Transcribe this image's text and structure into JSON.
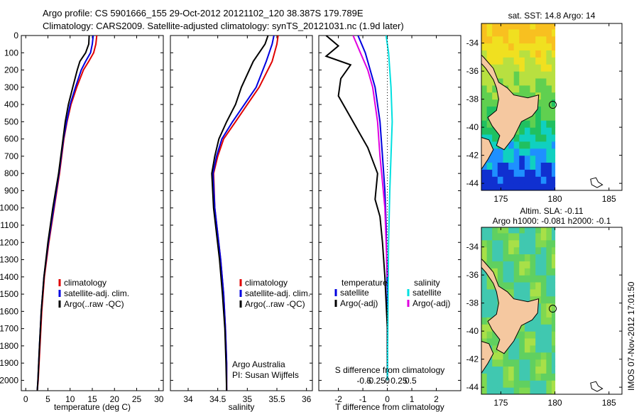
{
  "title_line1": "Argo profile: CS 5901666_155 29-Oct-2012 20121102_120 38.387S 179.789E",
  "title_line2": "Climatology: CARS2009. Satellite-adjusted climatology: synTS_20121031.nc (1.9d later)",
  "side_stamp": "IMOS 07-Nov-2012 17:01:50",
  "credit": [
    "Argo Australia",
    "PI: Susan Wijffels"
  ],
  "colors": {
    "climatology": "#e00000",
    "satellite": "#0000e0",
    "argo": "#000000",
    "sal_satellite": "#00e0e0",
    "sal_argo": "#e000e0",
    "land": "#f5c8a0"
  },
  "chart_data": [
    {
      "type": "line",
      "xlabel": "temperature (deg C)",
      "xlim": [
        -1,
        31
      ],
      "xticks": [
        0,
        5,
        10,
        15,
        20,
        25,
        30
      ],
      "ylim": [
        2060,
        0
      ],
      "yticks": [
        0,
        100,
        200,
        300,
        400,
        500,
        600,
        700,
        800,
        900,
        1000,
        1100,
        1200,
        1300,
        1400,
        1500,
        1600,
        1700,
        1800,
        1900,
        2000
      ],
      "legend": [
        "climatology",
        "satellite-adj. clim.",
        "Argo(..raw -QC)"
      ],
      "series": [
        {
          "name": "climatology",
          "color": "#e00000",
          "x": [
            16,
            15.8,
            15.3,
            14.2,
            13,
            11.5,
            10.2,
            9.3,
            8.6,
            7.6,
            6.4,
            5.2,
            4.2,
            3.6,
            3.2,
            2.8,
            2.6
          ],
          "y": [
            0,
            50,
            100,
            150,
            200,
            300,
            400,
            500,
            600,
            800,
            1000,
            1200,
            1400,
            1600,
            1800,
            2000,
            2060
          ]
        },
        {
          "name": "satellite-adj. clim.",
          "color": "#0000e0",
          "x": [
            15.2,
            15,
            14.6,
            13.5,
            12.5,
            11.2,
            10,
            9.2,
            8.5,
            7.5,
            6.3,
            5.1,
            4.1,
            3.5,
            3.1,
            2.75,
            2.6
          ],
          "y": [
            0,
            50,
            100,
            150,
            200,
            300,
            400,
            500,
            600,
            800,
            1000,
            1200,
            1400,
            1600,
            1800,
            2000,
            2060
          ]
        },
        {
          "name": "Argo(..raw -QC)",
          "color": "#000000",
          "x": [
            14.3,
            14.2,
            13.5,
            12.2,
            11.6,
            10.6,
            9.6,
            8.9,
            8.4,
            7.4,
            6.1,
            5,
            4.1,
            3.5,
            3.1,
            2.75,
            2.6
          ],
          "y": [
            0,
            50,
            100,
            150,
            200,
            300,
            400,
            500,
            600,
            800,
            1000,
            1200,
            1400,
            1600,
            1800,
            2000,
            2060
          ]
        }
      ]
    },
    {
      "type": "line",
      "xlabel": "salinity",
      "xlim": [
        33.7,
        36.1
      ],
      "xticks": [
        34,
        34.5,
        35,
        35.5,
        36
      ],
      "ylim": [
        2060,
        0
      ],
      "legend": [
        "climatology",
        "satellite-adj. clim.",
        "Argo(..raw -QC)"
      ],
      "series": [
        {
          "name": "climatology",
          "color": "#e00000",
          "x": [
            35.52,
            35.5,
            35.42,
            35.2,
            35,
            34.8,
            34.6,
            34.5,
            34.43,
            34.45,
            34.55,
            34.6,
            34.63,
            34.65,
            34.65
          ],
          "y": [
            0,
            50,
            150,
            300,
            400,
            500,
            600,
            700,
            800,
            1000,
            1300,
            1500,
            1700,
            1900,
            2060
          ]
        },
        {
          "name": "satellite-adj. clim.",
          "color": "#0000e0",
          "x": [
            35.45,
            35.42,
            35.32,
            35.15,
            34.95,
            34.75,
            34.57,
            34.48,
            34.42,
            34.45,
            34.55,
            34.6,
            34.63,
            34.65,
            34.65
          ],
          "y": [
            0,
            50,
            150,
            300,
            400,
            500,
            600,
            700,
            800,
            1000,
            1300,
            1500,
            1700,
            1900,
            2060
          ]
        },
        {
          "name": "Argo(..raw -QC)",
          "color": "#000000",
          "x": [
            35.35,
            35.3,
            35.1,
            34.9,
            34.8,
            34.65,
            34.52,
            34.45,
            34.4,
            34.43,
            34.53,
            34.58,
            34.62,
            34.64,
            34.65
          ],
          "y": [
            0,
            50,
            150,
            300,
            400,
            500,
            600,
            700,
            800,
            1000,
            1300,
            1500,
            1700,
            1900,
            2060
          ]
        }
      ]
    },
    {
      "type": "line",
      "top_xlabel": "S difference from climatology",
      "top_xticks": [
        "-0.5",
        "-0.25",
        "0",
        "0.25",
        "0.5"
      ],
      "xlabel": "T difference from climatology",
      "xlim": [
        -2.8,
        3
      ],
      "xticks": [
        -2,
        -1,
        0,
        1,
        2
      ],
      "ylim": [
        2060,
        0
      ],
      "legend_temperature": [
        "temperature",
        "satellite",
        "Argo(-adj)"
      ],
      "legend_salinity": [
        "salinity",
        "satellite",
        "Argo(-adj)"
      ],
      "series": [
        {
          "name": "temperature satellite",
          "color": "#0000e0",
          "x": [
            -1.2,
            -0.9,
            -0.7,
            -0.5,
            -0.3,
            -0.2,
            -0.1,
            -0.05,
            0,
            0
          ],
          "y": [
            0,
            100,
            200,
            300,
            500,
            700,
            900,
            1100,
            1500,
            2000
          ]
        },
        {
          "name": "temperature Argo(-adj)",
          "color": "#000000",
          "x": [
            -2.5,
            -2,
            -2.5,
            -1.5,
            -1.9,
            -2,
            -1.4,
            -0.8,
            -0.4,
            -0.5,
            -0.3,
            -0.2,
            -0.1,
            0,
            0
          ],
          "y": [
            0,
            60,
            120,
            170,
            250,
            350,
            500,
            650,
            800,
            950,
            1050,
            1200,
            1400,
            1700,
            2000
          ]
        },
        {
          "name": "salinity satellite",
          "color": "#00e0e0",
          "x": [
            -0.05,
            0.05,
            0.1,
            0.15,
            0.2,
            0.15,
            0.1,
            0.05,
            0
          ],
          "y": [
            0,
            100,
            200,
            300,
            500,
            700,
            900,
            1200,
            2000
          ]
        },
        {
          "name": "salinity Argo(-adj)",
          "color": "#e000e0",
          "x": [
            -1.4,
            -1.1,
            -0.8,
            -0.6,
            -0.4,
            -0.3,
            -0.2,
            -0.1,
            0
          ],
          "y": [
            0,
            100,
            200,
            300,
            500,
            700,
            850,
            1000,
            1400
          ]
        }
      ]
    },
    {
      "type": "heatmap",
      "title": "sat. SST: 14.8  Argo: 14",
      "xlim": [
        173.2,
        186.2
      ],
      "xticks": [
        175,
        180,
        185
      ],
      "ylim": [
        -44.5,
        -32.6
      ],
      "yticks": [
        -34,
        -36,
        -38,
        -40,
        -42,
        -44
      ],
      "marker": {
        "lon": 179.8,
        "lat": -38.4
      }
    },
    {
      "type": "heatmap",
      "title": "Altim. SLA: -0.11",
      "subtitle": "Argo h1000: -0.081  h2000: -0.1",
      "xlim": [
        173.2,
        186.2
      ],
      "xticks": [
        175,
        180,
        185
      ],
      "ylim": [
        -44.5,
        -32.6
      ],
      "yticks": [
        -34,
        -36,
        -38,
        -40,
        -42,
        -44
      ],
      "marker": {
        "lon": 179.8,
        "lat": -38.4
      }
    }
  ]
}
